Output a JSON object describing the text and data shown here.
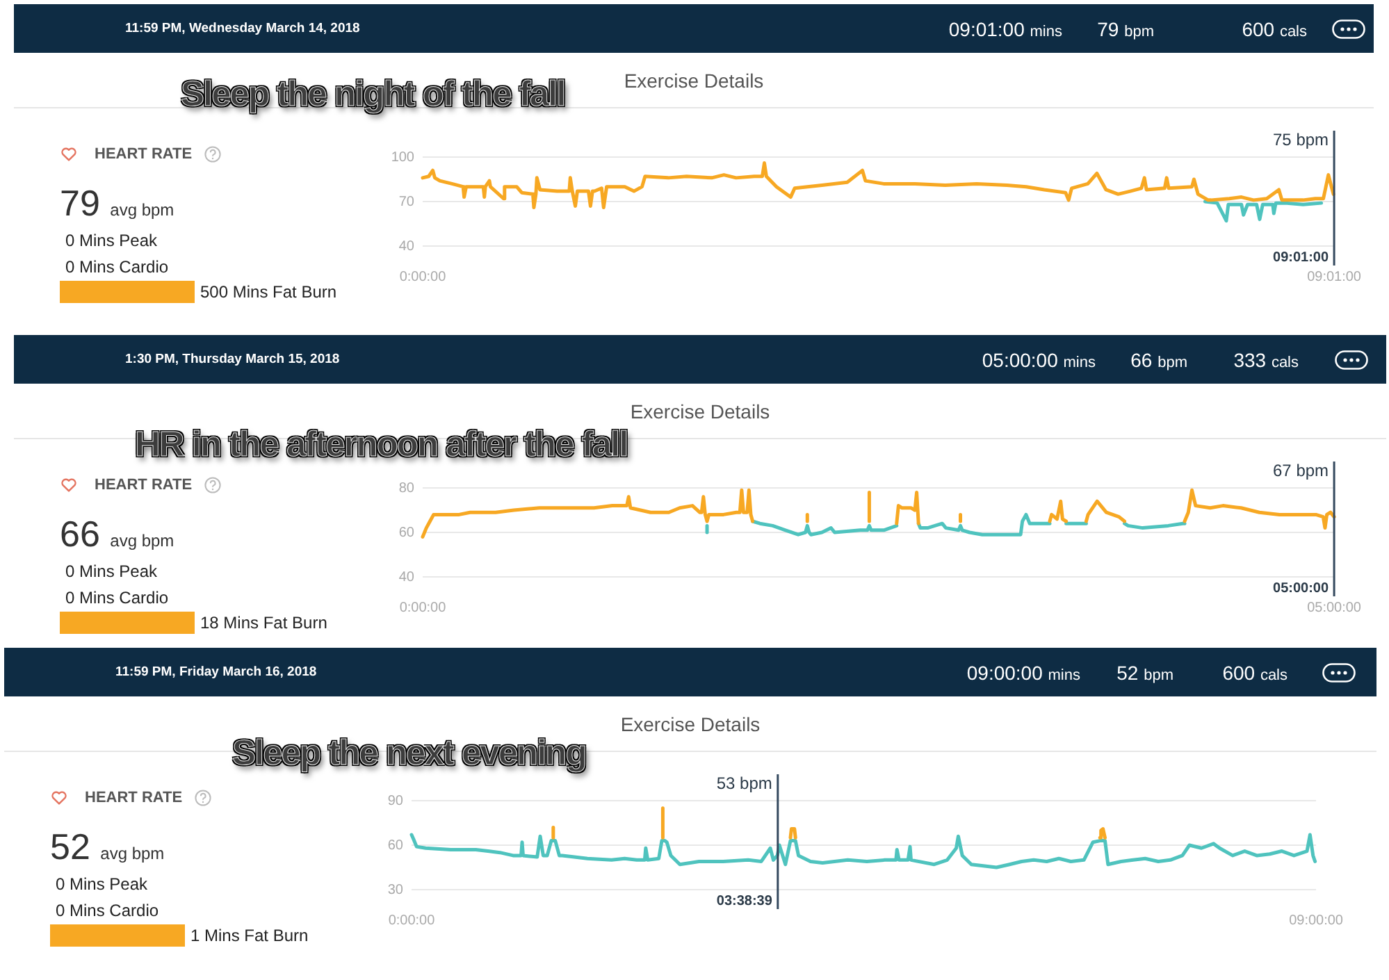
{
  "chart_data": [
    {
      "type": "line",
      "title": "Exercise Details",
      "subtitle": "Sleep the night of the fall",
      "annotations": [
        "11:59 PM, Wednesday March 14, 2018",
        "09:01:00 mins",
        "79 bpm",
        "600 cals",
        "HEART RATE",
        "79 avg bpm",
        "0 Mins Peak",
        "0 Mins Cardio",
        "500 Mins Fat Burn",
        {
          "text": "75 bpm",
          "x": 9.0167
        },
        {
          "text": "09:01:00",
          "x": 9.0167
        }
      ],
      "xlim": [
        0,
        9.0167
      ],
      "xticks": [
        {
          "value": 0,
          "label": "0:00:00"
        },
        {
          "value": 9.0167,
          "label": "09:01:00"
        }
      ],
      "ylim": [
        40,
        100
      ],
      "yticks": [
        40,
        70,
        100
      ],
      "grid": "y",
      "marker": "none",
      "line_style": "solid",
      "ref_lines": [
        {
          "axis": "x",
          "value": 9.0167,
          "color": "#34495e"
        }
      ],
      "series": [
        {
          "color": "#f7a823",
          "x": [
            0,
            0.06,
            0.1,
            0.12,
            0.17,
            0.29,
            0.4,
            0.41,
            0.43,
            0.6,
            0.61,
            0.62,
            0.66,
            0.67,
            0.8,
            0.81,
            0.93,
            0.98,
            1.09,
            1.1,
            1.12,
            1.13,
            1.16,
            1.33,
            1.45,
            1.46,
            1.48,
            1.51,
            1.53,
            1.64,
            1.66,
            1.68,
            1.7,
            1.77,
            1.79,
            1.82,
            2,
            2.09,
            2.17,
            2.2,
            2.43,
            2.61,
            2.86,
            2.98,
            3.1,
            3.28,
            3.36,
            3.38,
            3.4,
            3.5,
            3.64,
            3.68,
            3.95,
            4.2,
            4.35,
            4.38,
            4.56,
            4.87,
            5.17,
            5.48,
            5.78,
            5.97,
            6.15,
            6.36,
            6.39,
            6.42,
            6.58,
            6.67,
            6.76,
            6.88,
            7,
            7.11,
            7.14,
            7.16,
            7.34,
            7.36,
            7.38,
            7.61,
            7.63,
            7.67,
            7.77,
            7.8,
            7.98,
            8.1,
            8.22,
            8.35,
            8.47,
            8.5,
            8.71,
            8.83,
            8.91,
            8.96,
            8.99,
            9.01
          ],
          "values": [
            86,
            87,
            91,
            86,
            84,
            82,
            80,
            73,
            80,
            80,
            73,
            80,
            84,
            80,
            72,
            80,
            80,
            76,
            75,
            66,
            75,
            86,
            78,
            77,
            77,
            86,
            77,
            67,
            77,
            77,
            67,
            77,
            77,
            79,
            66,
            80,
            80,
            77,
            80,
            87,
            86,
            87,
            86,
            88,
            86,
            87,
            87,
            96,
            87,
            80,
            73,
            79,
            81,
            83,
            91,
            84,
            82,
            82,
            81,
            82,
            81,
            80,
            78,
            76,
            71,
            79,
            82,
            89,
            78,
            75,
            77,
            79,
            86,
            78,
            79,
            86,
            79,
            80,
            85,
            75,
            71,
            71,
            72,
            73,
            71,
            72,
            78,
            71,
            71,
            72,
            72,
            88,
            80,
            75
          ]
        },
        {
          "color": "#4fc3be",
          "x": [
            7.74,
            7.86,
            7.95,
            7.97,
            8.1,
            8.12,
            8.16,
            8.25,
            8.28,
            8.31,
            8.41,
            8.42,
            8.44,
            8.53,
            8.71,
            8.89
          ],
          "values": [
            70,
            69,
            57,
            68,
            68,
            61,
            68,
            68,
            58,
            68,
            68,
            62,
            69,
            69,
            68,
            69
          ]
        }
      ]
    },
    {
      "type": "line",
      "title": "Exercise Details",
      "subtitle": "HR in the afternoon after the fall",
      "annotations": [
        "1:30 PM, Thursday March 15, 2018",
        "05:00:00 mins",
        "66 bpm",
        "333 cals",
        "HEART RATE",
        "66 avg bpm",
        "0 Mins Peak",
        "0 Mins Cardio",
        "18 Mins Fat Burn",
        {
          "text": "67 bpm",
          "x": 5
        },
        {
          "text": "05:00:00",
          "x": 5
        }
      ],
      "xlim": [
        0,
        5
      ],
      "xticks": [
        {
          "value": 0,
          "label": "0:00:00"
        },
        {
          "value": 5,
          "label": "05:00:00"
        }
      ],
      "ylim": [
        40,
        80
      ],
      "yticks": [
        40,
        60,
        80
      ],
      "grid": "y",
      "marker": "none",
      "line_style": "solid",
      "ref_lines": [
        {
          "axis": "x",
          "value": 5,
          "color": "#34495e"
        }
      ],
      "series": [
        {
          "color": "#f7a823",
          "x": [
            0,
            0.02,
            0.04,
            0.06,
            0.2,
            0.26,
            0.4,
            0.5,
            0.64,
            0.77,
            0.84,
            0.94,
            1.04,
            1.12,
            1.13,
            1.14,
            1.25,
            1.35,
            1.41,
            1.48,
            1.52,
            1.53,
            1.54,
            1.55,
            1.56,
            1.57,
            1.65,
            1.72,
            1.74,
            1.75,
            1.76,
            1.78,
            1.79,
            1.8,
            1.81,
            1.82,
            2.11,
            2.11,
            2.12,
            2.45,
            2.45,
            2.46,
            2.6,
            2.61,
            2.63,
            2.68,
            2.7,
            2.71,
            2.72,
            2.8,
            2.95,
            2.95,
            2.96,
            3.44,
            3.45,
            3.48,
            3.5,
            3.51,
            3.53,
            3.58,
            3.64,
            3.65,
            3.7,
            3.75,
            3.82,
            3.85,
            4,
            4.18,
            4.2,
            4.22,
            4.24,
            4.32,
            4.39,
            4.49,
            4.59,
            4.7,
            4.8,
            4.9,
            4.94,
            4.95,
            4.96,
            4.98,
            5
          ],
          "values": [
            58,
            62,
            65,
            68,
            68,
            69,
            69,
            70,
            71,
            71,
            71,
            71,
            72,
            72,
            76,
            71,
            69,
            69,
            71,
            72,
            69,
            69,
            76,
            68,
            65,
            68,
            68,
            69,
            69,
            79,
            69,
            69,
            79,
            68,
            65,
            null,
            65,
            68,
            null,
            65,
            78,
            null,
            64,
            72,
            71,
            71,
            70,
            78,
            64,
            null,
            65,
            68,
            null,
            65,
            68,
            66,
            74,
            66,
            65,
            null,
            65,
            68,
            74,
            69,
            67,
            65,
            null,
            65,
            69,
            79,
            72,
            71,
            72,
            71,
            69,
            68,
            68,
            68,
            67,
            62,
            68,
            69,
            67
          ]
        },
        {
          "color": "#4fc3be",
          "x": [
            1.56,
            1.56,
            1.57,
            1.81,
            1.85,
            1.92,
            1.99,
            2.06,
            2.1,
            2.11,
            2.12,
            2.13,
            2.19,
            2.24,
            2.26,
            2.4,
            2.44,
            2.45,
            2.46,
            2.53,
            2.6,
            2.61,
            2.72,
            2.73,
            2.77,
            2.85,
            2.87,
            2.94,
            2.95,
            2.96,
            3,
            3.07,
            3.21,
            3.28,
            3.29,
            3.31,
            3.33,
            3.41,
            3.44,
            3.45,
            3.53,
            3.55,
            3.61,
            3.64,
            3.66,
            3.85,
            3.87,
            3.95,
            4.09,
            4.17,
            4.18
          ],
          "values": [
            63,
            60,
            null,
            65,
            64,
            63,
            61,
            59,
            60,
            63,
            60,
            59,
            60,
            62,
            60,
            61,
            61,
            63,
            61,
            61,
            63,
            null,
            64,
            62,
            62,
            64,
            62,
            61,
            63,
            61,
            60,
            59,
            59,
            59,
            65,
            68,
            64,
            64,
            64,
            null,
            64,
            64,
            64,
            64,
            null,
            64,
            63,
            62,
            63,
            64,
            64
          ]
        }
      ]
    },
    {
      "type": "line",
      "title": "Exercise Details",
      "subtitle": "Sleep the next evening",
      "annotations": [
        "11:59 PM, Friday March 16, 2018",
        "09:00:00 mins",
        "52 bpm",
        "600 cals",
        "HEART RATE",
        "52 avg bpm",
        "0 Mins Peak",
        "0 Mins Cardio",
        "1 Mins Fat Burn",
        {
          "text": "53 bpm",
          "x": 3.64417
        },
        {
          "text": "03:38:39",
          "x": 3.64417
        }
      ],
      "xlim": [
        0,
        9
      ],
      "xticks": [
        {
          "value": 0,
          "label": "0:00:00"
        },
        {
          "value": 9,
          "label": "09:00:00"
        }
      ],
      "ylim": [
        30,
        90
      ],
      "yticks": [
        30,
        60,
        90
      ],
      "grid": "y",
      "marker": "none",
      "line_style": "solid",
      "ref_lines": [
        {
          "axis": "x",
          "value": 3.64417,
          "color": "#34495e"
        }
      ],
      "series": [
        {
          "color": "#f7a823",
          "x": [
            1.41,
            1.41,
            1.42,
            2.5,
            2.5,
            2.51,
            3.77,
            3.78,
            3.81,
            3.82,
            3.83,
            6.85,
            6.86,
            6.88,
            6.9
          ],
          "values": [
            65,
            72,
            null,
            65,
            85,
            null,
            65,
            71,
            71,
            65,
            null,
            65,
            70,
            71,
            65
          ]
        },
        {
          "color": "#4fc3be",
          "x": [
            0,
            0.02,
            0.05,
            0.14,
            0.39,
            0.64,
            0.76,
            0.88,
            1.01,
            1.09,
            1.1,
            1.11,
            1.25,
            1.28,
            1.31,
            1.35,
            1.39,
            1.43,
            1.47,
            1.5,
            1.62,
            1.75,
            1.99,
            2.12,
            2.24,
            2.32,
            2.33,
            2.35,
            2.46,
            2.49,
            2.52,
            2.54,
            2.58,
            2.67,
            2.86,
            3.1,
            3.35,
            3.48,
            3.57,
            3.6,
            3.64,
            3.66,
            3.72,
            3.77,
            3.82,
            3.85,
            3.97,
            4.09,
            4.34,
            4.53,
            4.71,
            4.82,
            4.83,
            4.85,
            4.94,
            4.96,
            4.97,
            5.2,
            5.33,
            5.42,
            5.44,
            5.48,
            5.57,
            5.82,
            5.95,
            6.07,
            6.19,
            6.32,
            6.44,
            6.56,
            6.69,
            6.78,
            6.85,
            6.9,
            6.93,
            7.06,
            7.18,
            7.3,
            7.43,
            7.55,
            7.67,
            7.74,
            7.86,
            7.98,
            8.04,
            8.17,
            8.29,
            8.41,
            8.54,
            8.66,
            8.78,
            8.91,
            8.94,
            8.97,
            8.99
          ],
          "values": [
            67,
            64,
            59,
            58,
            57,
            57,
            56,
            55,
            53,
            53,
            62,
            53,
            52,
            66,
            53,
            53,
            63,
            63,
            53,
            53,
            52,
            51,
            50,
            51,
            50,
            50,
            58,
            50,
            51,
            63,
            63,
            62,
            53,
            47,
            49,
            49,
            50,
            49,
            58,
            50,
            53,
            60,
            47,
            63,
            63,
            53,
            49,
            48,
            50,
            49,
            50,
            50,
            57,
            50,
            50,
            59,
            50,
            47,
            50,
            58,
            66,
            53,
            47,
            45,
            47,
            49,
            50,
            49,
            51,
            49,
            50,
            62,
            63,
            63,
            47,
            49,
            50,
            51,
            49,
            50,
            53,
            60,
            58,
            61,
            58,
            53,
            56,
            53,
            54,
            56,
            53,
            56,
            67,
            53,
            49
          ]
        }
      ]
    }
  ]
}
